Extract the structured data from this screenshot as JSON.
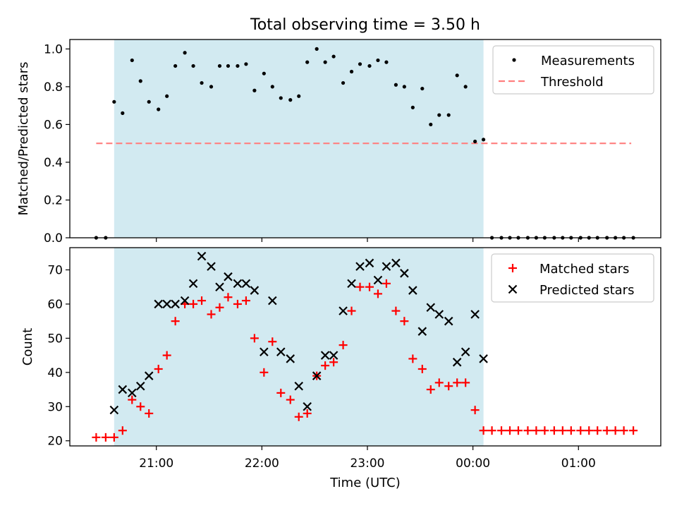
{
  "chart_data": {
    "type": "scatter",
    "title": "Total observing time = 3.50 h",
    "xlabel": "Time (UTC)",
    "x_unit": "hours after 20:00 UTC",
    "x_ticks": [
      {
        "value": 1,
        "label": "21:00"
      },
      {
        "value": 2,
        "label": "22:00"
      },
      {
        "value": 3,
        "label": "23:00"
      },
      {
        "value": 4,
        "label": "00:00"
      },
      {
        "value": 5,
        "label": "01:00"
      }
    ],
    "xlim": [
      0.18,
      5.78
    ],
    "observing_window": {
      "start": 0.6,
      "end": 4.1,
      "color": "#add8e6"
    },
    "panels": [
      {
        "name": "ratio",
        "ylabel": "Matched/Predicted stars",
        "ylim": [
          0,
          1.05
        ],
        "y_ticks": [
          "0.0",
          "0.2",
          "0.4",
          "0.6",
          "0.8",
          "1.0"
        ],
        "y_tick_values": [
          0,
          0.2,
          0.4,
          0.6,
          0.8,
          1.0
        ],
        "legend": [
          {
            "label": "Measurements",
            "marker": "dot",
            "color": "#000000"
          },
          {
            "label": "Threshold",
            "marker": "dashed-line",
            "color": "#ff7f7f"
          }
        ],
        "threshold": {
          "value": 0.5,
          "x_start": 0.43,
          "x_end": 5.5,
          "color": "#ff7f7f"
        },
        "series": [
          {
            "name": "Measurements",
            "color": "#000000",
            "x": [
              0.43,
              0.52,
              0.6,
              0.68,
              0.77,
              0.85,
              0.93,
              1.02,
              1.1,
              1.18,
              1.27,
              1.35,
              1.43,
              1.52,
              1.6,
              1.68,
              1.77,
              1.85,
              1.93,
              2.02,
              2.1,
              2.18,
              2.27,
              2.35,
              2.43,
              2.52,
              2.6,
              2.68,
              2.77,
              2.85,
              2.93,
              3.02,
              3.1,
              3.18,
              3.27,
              3.35,
              3.43,
              3.52,
              3.6,
              3.68,
              3.77,
              3.85,
              3.93,
              4.02,
              4.1,
              4.18,
              4.27,
              4.35,
              4.43,
              4.52,
              4.6,
              4.68,
              4.77,
              4.85,
              4.93,
              5.02,
              5.1,
              5.18,
              5.27,
              5.35,
              5.43,
              5.52
            ],
            "y": [
              0.0,
              0.0,
              0.72,
              0.66,
              0.94,
              0.83,
              0.72,
              0.68,
              0.75,
              0.91,
              0.98,
              0.91,
              0.82,
              0.8,
              0.91,
              0.91,
              0.91,
              0.92,
              0.78,
              0.87,
              0.8,
              0.74,
              0.73,
              0.75,
              0.93,
              1.0,
              0.93,
              0.96,
              0.82,
              0.88,
              0.92,
              0.91,
              0.94,
              0.93,
              0.81,
              0.8,
              0.69,
              0.79,
              0.6,
              0.65,
              0.65,
              0.86,
              0.8,
              0.51,
              0.52,
              0.0,
              0.0,
              0.0,
              0.0,
              0.0,
              0.0,
              0.0,
              0.0,
              0.0,
              0.0,
              0.0,
              0.0,
              0.0,
              0.0,
              0.0,
              0.0,
              0.0
            ]
          }
        ]
      },
      {
        "name": "counts",
        "ylabel": "Count",
        "ylim": [
          18.5,
          76.5
        ],
        "y_ticks": [
          "20",
          "30",
          "40",
          "50",
          "60",
          "70"
        ],
        "y_tick_values": [
          20,
          30,
          40,
          50,
          60,
          70
        ],
        "legend": [
          {
            "label": "Matched stars",
            "marker": "plus",
            "color": "#ff0000"
          },
          {
            "label": "Predicted stars",
            "marker": "x",
            "color": "#000000"
          }
        ],
        "series": [
          {
            "name": "Matched stars",
            "color": "#ff0000",
            "x": [
              0.43,
              0.52,
              0.6,
              0.68,
              0.77,
              0.85,
              0.93,
              1.02,
              1.1,
              1.18,
              1.27,
              1.35,
              1.43,
              1.52,
              1.6,
              1.68,
              1.77,
              1.85,
              1.93,
              2.02,
              2.1,
              2.18,
              2.27,
              2.35,
              2.43,
              2.52,
              2.6,
              2.68,
              2.77,
              2.85,
              2.93,
              3.02,
              3.1,
              3.18,
              3.27,
              3.35,
              3.43,
              3.52,
              3.6,
              3.68,
              3.77,
              3.85,
              3.93,
              4.02,
              4.1,
              4.18,
              4.27,
              4.35,
              4.43,
              4.52,
              4.6,
              4.68,
              4.77,
              4.85,
              4.93,
              5.02,
              5.1,
              5.18,
              5.27,
              5.35,
              5.43,
              5.52
            ],
            "y": [
              21,
              21,
              21,
              23,
              32,
              30,
              28,
              41,
              45,
              55,
              60,
              60,
              61,
              57,
              59,
              62,
              60,
              61,
              50,
              40,
              49,
              34,
              32,
              27,
              28,
              39,
              42,
              43,
              48,
              58,
              65,
              65,
              63,
              66,
              58,
              55,
              44,
              41,
              35,
              37,
              36,
              37,
              37,
              29,
              23,
              23,
              23,
              23,
              23,
              23,
              23,
              23,
              23,
              23,
              23,
              23,
              23,
              23,
              23,
              23,
              23,
              23
            ]
          },
          {
            "name": "Predicted stars",
            "color": "#000000",
            "x": [
              0.6,
              0.68,
              0.77,
              0.85,
              0.93,
              1.02,
              1.1,
              1.18,
              1.27,
              1.35,
              1.43,
              1.52,
              1.6,
              1.68,
              1.77,
              1.85,
              1.93,
              2.02,
              2.1,
              2.18,
              2.27,
              2.35,
              2.43,
              2.52,
              2.6,
              2.68,
              2.77,
              2.85,
              2.93,
              3.02,
              3.1,
              3.18,
              3.27,
              3.35,
              3.43,
              3.52,
              3.6,
              3.68,
              3.77,
              3.85,
              3.93,
              4.02,
              4.1
            ],
            "y": [
              29,
              35,
              34,
              36,
              39,
              60,
              60,
              60,
              61,
              66,
              74,
              71,
              65,
              68,
              66,
              66,
              64,
              46,
              61,
              46,
              44,
              36,
              30,
              39,
              45,
              45,
              58,
              66,
              71,
              72,
              67,
              71,
              72,
              69,
              64,
              52,
              59,
              57,
              55,
              43,
              46,
              57,
              44
            ]
          }
        ]
      }
    ]
  }
}
